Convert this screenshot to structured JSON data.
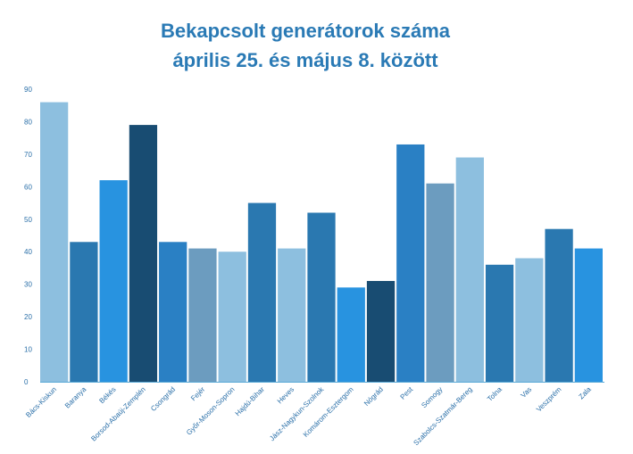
{
  "chart_data": {
    "type": "bar",
    "title_lines": [
      "Bekapcsolt generátorok száma",
      "április 25. és május 8. között"
    ],
    "xlabel": "",
    "ylabel": "",
    "ylim": [
      0,
      90
    ],
    "yticks": [
      0,
      10,
      20,
      30,
      40,
      50,
      60,
      70,
      80,
      90
    ],
    "grid": false,
    "legend": "none",
    "categories": [
      "Bács-Kiskun",
      "Baranya",
      "Békés",
      "Borsod-Abaúj-Zemplén",
      "Csongrád",
      "Fejér",
      "Győr-Moson-Sopron",
      "Hajdú-Bihar",
      "Heves",
      "Jász-Nagykun-Szolnok",
      "Komárom-Esztergom",
      "Nógrád",
      "Pest",
      "Somogy",
      "Szabolcs-Szatmár-Bereg",
      "Tolna",
      "Vas",
      "Veszprém",
      "Zala"
    ],
    "values": [
      86,
      43,
      62,
      79,
      43,
      41,
      40,
      55,
      41,
      52,
      29,
      31,
      73,
      61,
      69,
      36,
      38,
      47,
      41
    ],
    "colors": [
      "#8dbfdf",
      "#2a78b0",
      "#2893e0",
      "#184c72",
      "#2a80c4",
      "#6c9cbf",
      "#8dbfdf",
      "#2a78b0",
      "#8dbfdf",
      "#2a78b0",
      "#2893e0",
      "#184c72",
      "#2a80c4",
      "#6c9cbf",
      "#8dbfdf",
      "#2a78b0",
      "#8dbfdf",
      "#2a78b0",
      "#2893e0"
    ]
  }
}
